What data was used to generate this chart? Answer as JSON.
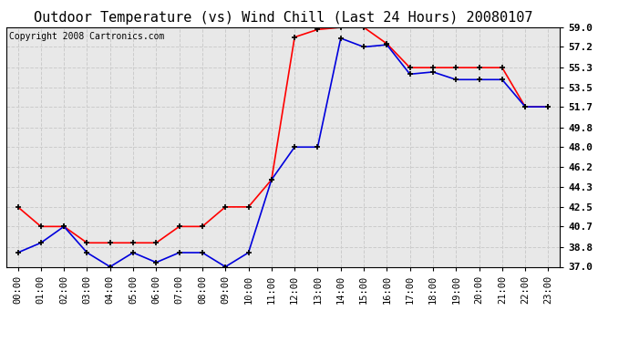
{
  "title": "Outdoor Temperature (vs) Wind Chill (Last 24 Hours) 20080107",
  "copyright": "Copyright 2008 Cartronics.com",
  "x_labels": [
    "00:00",
    "01:00",
    "02:00",
    "03:00",
    "04:00",
    "05:00",
    "06:00",
    "07:00",
    "08:00",
    "09:00",
    "10:00",
    "11:00",
    "12:00",
    "13:00",
    "14:00",
    "15:00",
    "16:00",
    "17:00",
    "18:00",
    "19:00",
    "20:00",
    "21:00",
    "22:00",
    "23:00"
  ],
  "red_data": [
    42.5,
    40.7,
    40.7,
    39.2,
    39.2,
    39.2,
    39.2,
    40.7,
    40.7,
    42.5,
    42.5,
    45.0,
    58.1,
    58.8,
    59.0,
    59.0,
    57.5,
    55.3,
    55.3,
    55.3,
    55.3,
    55.3,
    51.7,
    51.7
  ],
  "blue_data": [
    38.3,
    39.2,
    40.7,
    38.3,
    37.0,
    38.3,
    37.4,
    38.3,
    38.3,
    37.0,
    38.3,
    45.0,
    48.0,
    48.0,
    58.0,
    57.2,
    57.4,
    54.7,
    54.9,
    54.2,
    54.2,
    54.2,
    51.7,
    51.7
  ],
  "ylim": [
    37.0,
    59.0
  ],
  "yticks": [
    37.0,
    38.8,
    40.7,
    42.5,
    44.3,
    46.2,
    48.0,
    49.8,
    51.7,
    53.5,
    55.3,
    57.2,
    59.0
  ],
  "red_color": "#ff0000",
  "blue_color": "#0000dd",
  "fig_bg_color": "#ffffff",
  "plot_bg_color": "#e8e8e8",
  "grid_color": "#cccccc",
  "title_fontsize": 11,
  "copyright_fontsize": 7,
  "tick_fontsize": 7.5,
  "ytick_fontsize": 8
}
